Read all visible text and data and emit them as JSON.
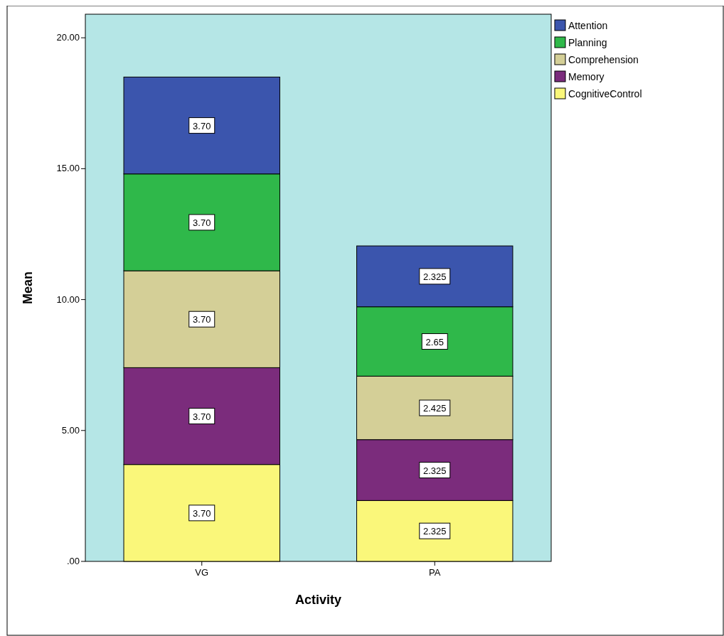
{
  "chart_data": {
    "type": "bar",
    "stacked": true,
    "xlabel": "Activity",
    "ylabel": "Mean",
    "categories": [
      "VG",
      "PA"
    ],
    "series": [
      {
        "name": "CognitiveControl",
        "color": "#faf77a",
        "values": [
          3.7,
          2.325
        ],
        "value_labels": [
          "3.70",
          "2.325"
        ]
      },
      {
        "name": "Memory",
        "color": "#7b2c7c",
        "values": [
          3.7,
          2.325
        ],
        "value_labels": [
          "3.70",
          "2.325"
        ]
      },
      {
        "name": "Comprehension",
        "color": "#d4cf97",
        "values": [
          3.7,
          2.425
        ],
        "value_labels": [
          "3.70",
          "2.425"
        ]
      },
      {
        "name": "Planning",
        "color": "#2fb84a",
        "values": [
          3.7,
          2.65
        ],
        "value_labels": [
          "3.70",
          "2.65"
        ]
      },
      {
        "name": "Attention",
        "color": "#3b55ad",
        "values": [
          3.7,
          2.325
        ],
        "value_labels": [
          "3.70",
          "2.325"
        ]
      }
    ],
    "ylim": [
      0,
      20.9
    ],
    "yticks": [
      {
        "value": 0,
        "label": ".00"
      },
      {
        "value": 5,
        "label": "5.00"
      },
      {
        "value": 10,
        "label": "10.00"
      },
      {
        "value": 15,
        "label": "15.00"
      },
      {
        "value": 20,
        "label": "20.00"
      }
    ],
    "grid": false,
    "legend": "top right"
  }
}
